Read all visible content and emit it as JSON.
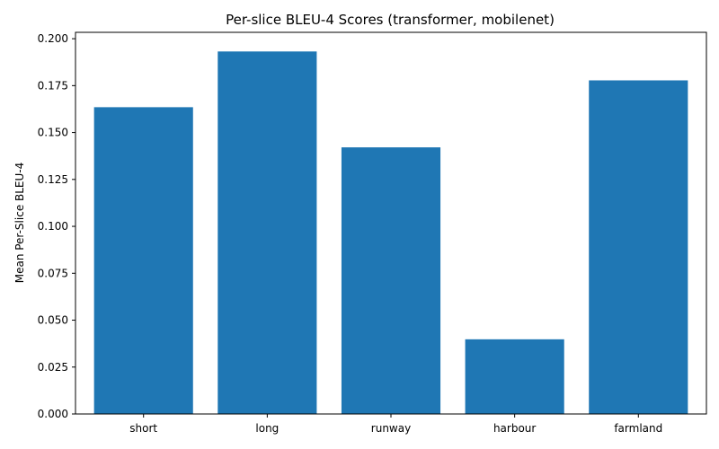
{
  "chart_data": {
    "type": "bar",
    "title": "Per-slice BLEU-4 Scores (transformer, mobilenet)",
    "xlabel": "",
    "ylabel": "Mean Per-Slice BLEU-4",
    "categories": [
      "short",
      "long",
      "runway",
      "harbour",
      "farmland"
    ],
    "values": [
      0.1635,
      0.1932,
      0.1421,
      0.0398,
      0.1778
    ],
    "ylim": [
      0,
      0.2034
    ],
    "yticks": [
      "0.000",
      "0.025",
      "0.050",
      "0.075",
      "0.100",
      "0.125",
      "0.150",
      "0.175",
      "0.200"
    ],
    "bar_color": "#1f77b4",
    "grid": false,
    "legend": "none"
  }
}
